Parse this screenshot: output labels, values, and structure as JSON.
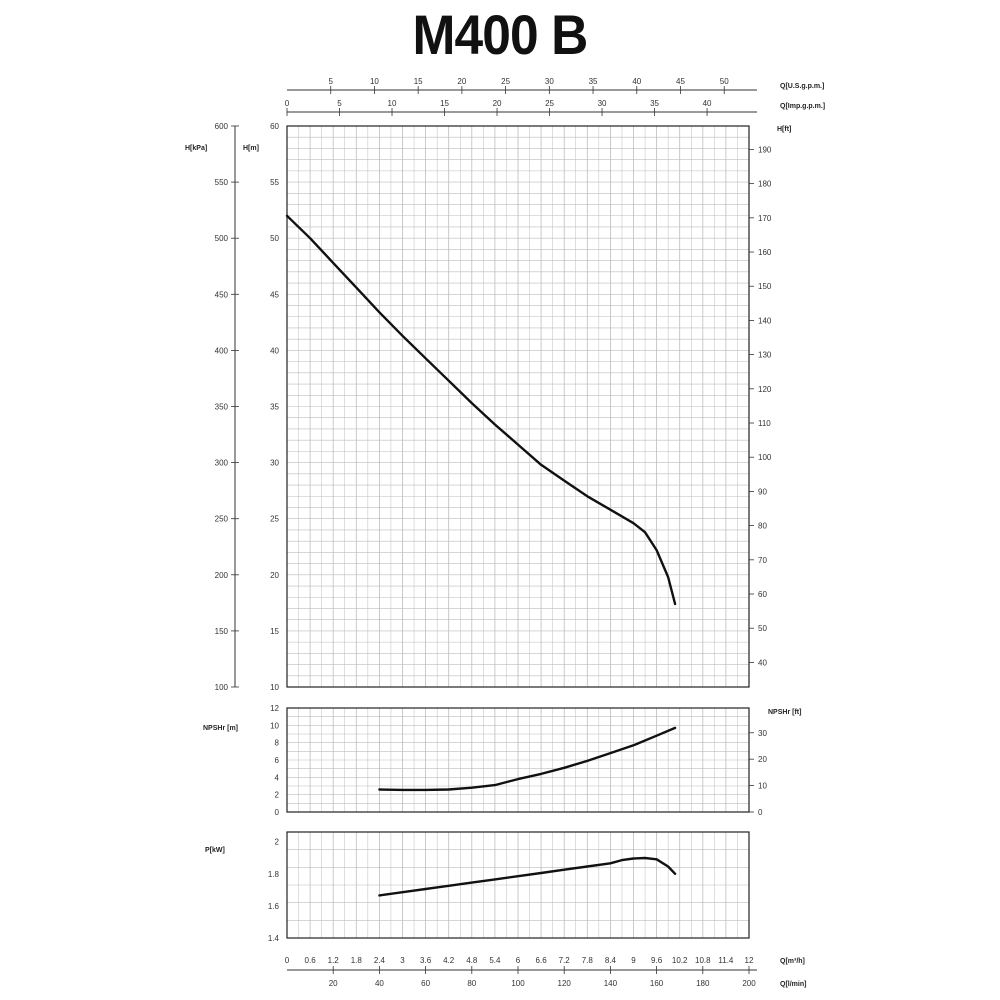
{
  "title": "M400 B",
  "chart_data": {
    "type": "line",
    "title": "M400 B",
    "x_axes": {
      "usgpm": {
        "label": "Q[U.S.g.p.m.]",
        "ticks": [
          5,
          10,
          15,
          20,
          25,
          30,
          35,
          40,
          45,
          50
        ]
      },
      "impgpm": {
        "label": "Q[Imp.g.p.m.]",
        "ticks": [
          0,
          5,
          10,
          15,
          20,
          25,
          30,
          35,
          40
        ]
      },
      "m3h": {
        "label": "Q[m³/h]",
        "ticks": [
          0,
          0.6,
          1.2,
          1.8,
          2.4,
          3,
          3.6,
          4.2,
          4.8,
          5.4,
          6,
          6.6,
          7.2,
          7.8,
          8.4,
          9,
          9.6,
          10.2,
          10.8,
          11.4,
          12
        ]
      },
      "lmin": {
        "label": "Q[l/min]",
        "ticks": [
          20,
          40,
          60,
          80,
          100,
          120,
          140,
          160,
          180,
          200
        ],
        "xlim": [
          0,
          200
        ]
      }
    },
    "head": {
      "ylabel_left_kpa": "H[kPa]",
      "ylabel_left_m": "H[m]",
      "ylabel_right_ft": "H[ft]",
      "kpa_ticks": [
        100,
        150,
        200,
        250,
        300,
        350,
        400,
        450,
        500,
        550,
        600
      ],
      "m_ticks": [
        10,
        15,
        20,
        25,
        30,
        35,
        40,
        45,
        50,
        55,
        60
      ],
      "ft_ticks": [
        40,
        50,
        60,
        70,
        80,
        90,
        100,
        110,
        120,
        130,
        140,
        150,
        160,
        170,
        180,
        190
      ],
      "ylim": [
        10,
        60
      ],
      "series": [
        {
          "x": [
            0,
            10,
            20,
            30,
            40,
            50,
            60,
            70,
            80,
            90,
            100,
            110,
            120,
            130,
            140,
            150,
            155,
            160,
            165,
            168
          ],
          "y": [
            52,
            50,
            47.8,
            45.6,
            43.4,
            41.3,
            39.3,
            37.3,
            35.3,
            33.4,
            31.6,
            29.8,
            28.4,
            27,
            25.8,
            24.6,
            23.8,
            22.2,
            19.8,
            17.4
          ]
        }
      ]
    },
    "npsh": {
      "ylabel_left": "NPSHr [m]",
      "ylabel_right": "NPSHr [ft]",
      "m_ticks": [
        0,
        2,
        4,
        6,
        8,
        10,
        12
      ],
      "ft_ticks": [
        0,
        10,
        20,
        30
      ],
      "ylim": [
        0,
        12
      ],
      "series": [
        {
          "x": [
            40,
            50,
            60,
            70,
            80,
            90,
            100,
            110,
            120,
            130,
            140,
            150,
            160,
            168
          ],
          "y": [
            2.6,
            2.55,
            2.55,
            2.6,
            2.8,
            3.1,
            3.8,
            4.4,
            5.1,
            5.9,
            6.8,
            7.7,
            8.8,
            9.7
          ]
        }
      ]
    },
    "power": {
      "ylabel": "P[kW]",
      "ticks": [
        1.4,
        1.6,
        1.8,
        2
      ],
      "ylim": [
        1.4,
        2.06
      ],
      "series": [
        {
          "x": [
            40,
            50,
            60,
            70,
            80,
            90,
            100,
            110,
            120,
            130,
            140,
            145,
            150,
            155,
            160,
            165,
            168
          ],
          "y": [
            1.665,
            1.685,
            1.705,
            1.725,
            1.745,
            1.765,
            1.785,
            1.805,
            1.825,
            1.845,
            1.865,
            1.885,
            1.895,
            1.898,
            1.89,
            1.845,
            1.8
          ]
        }
      ]
    }
  }
}
